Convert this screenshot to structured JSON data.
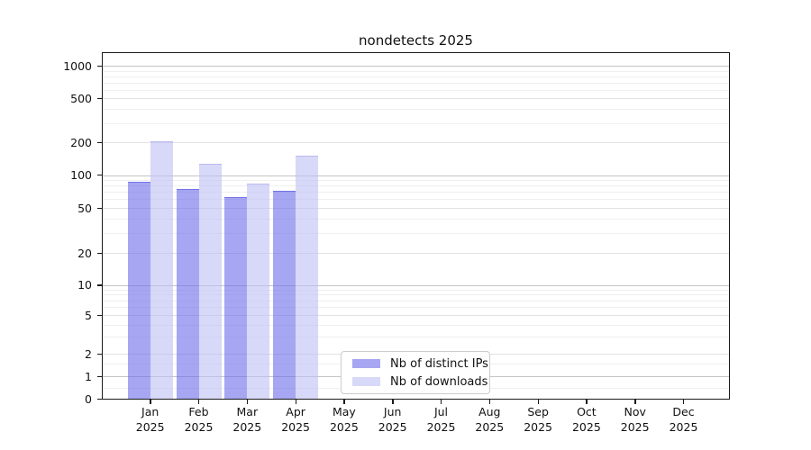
{
  "title": "nondetects 2025",
  "legend": {
    "items": [
      {
        "label": "Nb of distinct IPs",
        "color": "#a6a6f2"
      },
      {
        "label": "Nb of downloads",
        "color": "#d8d8f8"
      }
    ]
  },
  "y_axis": {
    "tick_labels": [
      "1000",
      "500",
      "200",
      "100",
      "50",
      "20",
      "10",
      "5",
      "2",
      "1",
      "0"
    ]
  },
  "x_axis": {
    "months": [
      "Jan",
      "Feb",
      "Mar",
      "Apr",
      "May",
      "Jun",
      "Jul",
      "Aug",
      "Sep",
      "Oct",
      "Nov",
      "Dec"
    ],
    "year": "2025"
  },
  "chart_data": {
    "type": "bar",
    "title": "nondetects 2025",
    "categories": [
      "Jan 2025",
      "Feb 2025",
      "Mar 2025",
      "Apr 2025",
      "May 2025",
      "Jun 2025",
      "Jul 2025",
      "Aug 2025",
      "Sep 2025",
      "Oct 2025",
      "Nov 2025",
      "Dec 2025"
    ],
    "series": [
      {
        "name": "Nb of distinct IPs",
        "color": "#a6a6f2",
        "values": [
          87,
          75,
          63,
          72,
          0,
          0,
          0,
          0,
          0,
          0,
          0,
          0
        ]
      },
      {
        "name": "Nb of downloads",
        "color": "#d8d8f8",
        "values": [
          205,
          128,
          84,
          150,
          0,
          0,
          0,
          0,
          0,
          0,
          0,
          0
        ]
      }
    ],
    "xlabel": "",
    "ylabel": "",
    "yscale": "symlog",
    "y_ticks": [
      0,
      1,
      2,
      5,
      10,
      20,
      50,
      100,
      200,
      500,
      1000
    ],
    "ylim": [
      0,
      1300
    ],
    "grid": true,
    "legend_position": "lower center"
  }
}
